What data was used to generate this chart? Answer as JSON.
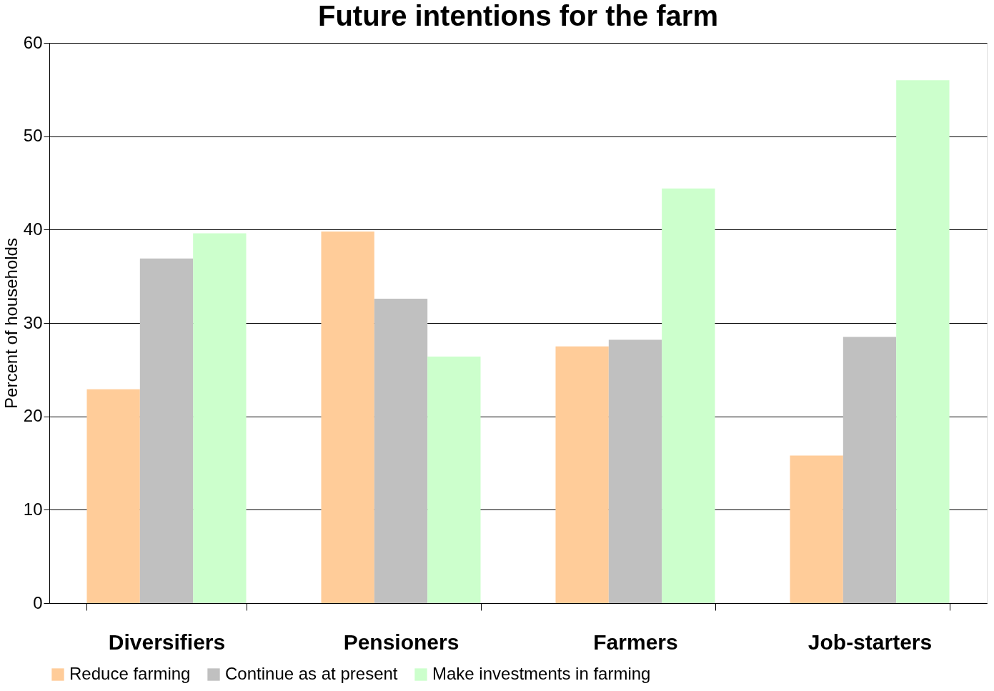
{
  "chart_data": {
    "type": "bar",
    "title": "Future intentions for the farm",
    "ylabel": "Percent of households",
    "categories": [
      "Diversifiers",
      "Pensioners",
      "Farmers",
      "Job-starters"
    ],
    "series": [
      {
        "name": "Reduce farming",
        "color": "#ffcc99",
        "values": [
          22.9,
          39.8,
          27.5,
          15.8
        ]
      },
      {
        "name": "Continue as at present",
        "color": "#c0c0c0",
        "values": [
          36.9,
          32.6,
          28.2,
          28.5
        ]
      },
      {
        "name": "Make investments in farming",
        "color": "#ccffcc",
        "values": [
          39.6,
          26.4,
          44.4,
          56.0
        ]
      }
    ],
    "ylim": [
      0,
      60
    ],
    "yticks": [
      0,
      10,
      20,
      30,
      40,
      50,
      60
    ],
    "grid": "y",
    "legend": "bottom"
  }
}
